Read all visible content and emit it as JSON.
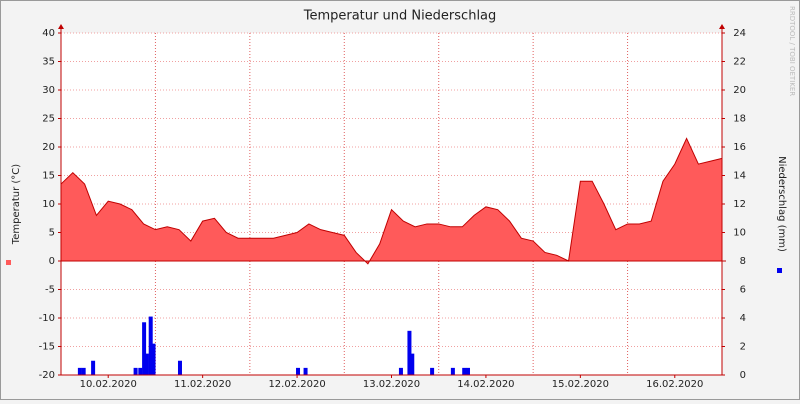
{
  "chart_data": {
    "type": "area",
    "title": "Temperatur und Niederschlag",
    "ylabel": "Temperatur (°C)",
    "y2label": "Niederschlag (mm)",
    "side_text": "RRDTOOL / TOBI OETIKER",
    "xlim": [
      10,
      17
    ],
    "xticks": [
      {
        "value": 10.5,
        "label": "10.02.2020"
      },
      {
        "value": 11.5,
        "label": "11.02.2020"
      },
      {
        "value": 12.5,
        "label": "12.02.2020"
      },
      {
        "value": 13.5,
        "label": "13.02.2020"
      },
      {
        "value": 14.5,
        "label": "14.02.2020"
      },
      {
        "value": 15.5,
        "label": "15.02.2020"
      },
      {
        "value": 16.5,
        "label": "16.02.2020"
      }
    ],
    "xgrid": [
      11,
      12,
      13,
      14,
      15,
      16,
      17
    ],
    "ylim": [
      -20,
      40
    ],
    "yticks": [
      -20,
      -15,
      -10,
      -5,
      0,
      5,
      10,
      15,
      20,
      25,
      30,
      35,
      40
    ],
    "y2lim": [
      0,
      24
    ],
    "y2ticks": [
      0,
      2,
      4,
      6,
      8,
      10,
      12,
      14,
      16,
      18,
      20,
      22,
      24
    ],
    "grid": true,
    "series": [
      {
        "type": "area",
        "color": "#ff5a5a",
        "line_color": "#c00000",
        "x": [
          10.0,
          10.125,
          10.25,
          10.375,
          10.5,
          10.625,
          10.75,
          10.875,
          11.0,
          11.125,
          11.25,
          11.375,
          11.5,
          11.625,
          11.75,
          11.875,
          12.0,
          12.125,
          12.25,
          12.375,
          12.5,
          12.625,
          12.75,
          12.875,
          13.0,
          13.125,
          13.25,
          13.375,
          13.5,
          13.625,
          13.75,
          13.875,
          14.0,
          14.125,
          14.25,
          14.375,
          14.5,
          14.625,
          14.75,
          14.875,
          15.0,
          15.125,
          15.25,
          15.375,
          15.5,
          15.625,
          15.75,
          15.875,
          16.0,
          16.125,
          16.25,
          16.375,
          16.5,
          16.625,
          16.75,
          16.875,
          17.0
        ],
        "values": [
          13.5,
          15.5,
          13.5,
          8,
          10.5,
          10,
          9,
          6.5,
          5.5,
          6,
          5.5,
          3.5,
          7,
          7.5,
          5,
          4,
          4,
          4,
          4,
          4.5,
          5,
          6.5,
          5.5,
          5,
          4.5,
          1.5,
          -0.5,
          3,
          9,
          7,
          6,
          6.5,
          6.5,
          6,
          6,
          8,
          9.5,
          9,
          7,
          4,
          3.5,
          1.5,
          1,
          0,
          14,
          14,
          10,
          5.5,
          6.5,
          6.5,
          7,
          14,
          17,
          21.5,
          17,
          17.5,
          18
        ]
      },
      {
        "type": "bar",
        "axis": "y2",
        "color": "#0000ee",
        "x": [
          10.2,
          10.24,
          10.34,
          10.79,
          10.84,
          10.88,
          10.91,
          10.95,
          10.98,
          11.26,
          12.51,
          12.59,
          13.6,
          13.69,
          13.72,
          13.93,
          14.15,
          14.27,
          14.31
        ],
        "values": [
          0.5,
          0.5,
          1,
          0.5,
          0.5,
          3.7,
          1.5,
          4.1,
          2.2,
          1,
          0.5,
          0.5,
          0.5,
          3.1,
          1.5,
          0.5,
          0.5,
          0.5,
          0.5
        ]
      }
    ]
  }
}
